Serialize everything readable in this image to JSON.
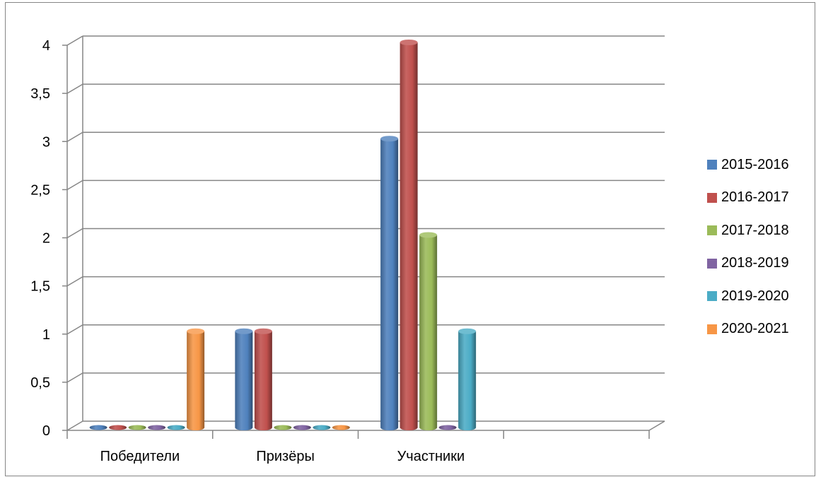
{
  "chart_data": {
    "type": "bar",
    "title": "",
    "xlabel": "",
    "ylabel": "",
    "categories": [
      "Победители",
      "Призёры",
      "Участники",
      ""
    ],
    "ylim": [
      0,
      4
    ],
    "y_ticks": [
      "0",
      "0,5",
      "1",
      "1,5",
      "2",
      "2,5",
      "3",
      "3,5",
      "4"
    ],
    "y_tick_values": [
      0,
      0.5,
      1,
      1.5,
      2,
      2.5,
      3,
      3.5,
      4
    ],
    "grid": true,
    "legend_position": "right",
    "style": "3d-cylinder",
    "series": [
      {
        "name": "2015-2016",
        "color": "#4F81BD",
        "values": [
          0,
          1,
          3,
          null
        ]
      },
      {
        "name": "2016-2017",
        "color": "#C0504D",
        "values": [
          0,
          1,
          4,
          null
        ]
      },
      {
        "name": "2017-2018",
        "color": "#9BBB59",
        "values": [
          0,
          0,
          2,
          null
        ]
      },
      {
        "name": "2018-2019",
        "color": "#8064A2",
        "values": [
          0,
          0,
          0,
          null
        ]
      },
      {
        "name": "2019-2020",
        "color": "#4BACC6",
        "values": [
          0,
          0,
          1,
          null
        ]
      },
      {
        "name": "2020-2021",
        "color": "#F79646",
        "values": [
          1,
          0,
          null,
          null
        ]
      }
    ]
  }
}
